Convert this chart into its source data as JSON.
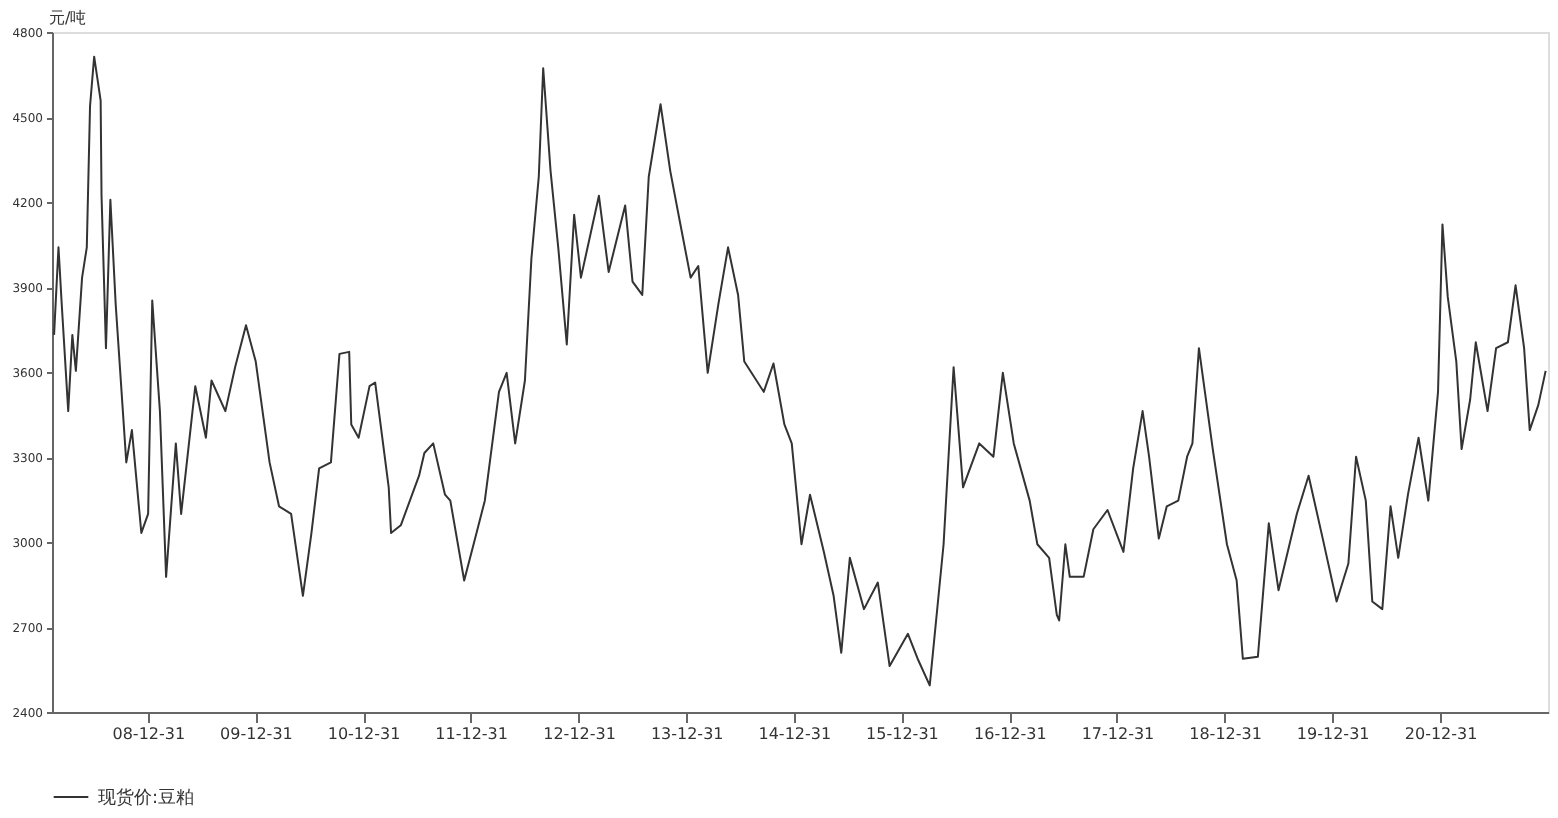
{
  "chart_data": {
    "type": "line",
    "ylabel": "元/吨",
    "legend": "bottom",
    "grid": false,
    "marker": "none",
    "line_style": "solid",
    "xlim": [
      "2008-02-10",
      "2022-01-01"
    ],
    "ylim": [
      2400,
      4800
    ],
    "yticks": [
      2400,
      2700,
      3000,
      3300,
      3600,
      3900,
      4200,
      4500,
      4800
    ],
    "xticks": [
      {
        "value": "2008-12-31",
        "label": "08-12-31"
      },
      {
        "value": "2009-12-31",
        "label": "09-12-31"
      },
      {
        "value": "2010-12-31",
        "label": "10-12-31"
      },
      {
        "value": "2011-12-31",
        "label": "11-12-31"
      },
      {
        "value": "2012-12-31",
        "label": "12-12-31"
      },
      {
        "value": "2013-12-31",
        "label": "13-12-31"
      },
      {
        "value": "2014-12-31",
        "label": "14-12-31"
      },
      {
        "value": "2015-12-31",
        "label": "15-12-31"
      },
      {
        "value": "2016-12-31",
        "label": "16-12-31"
      },
      {
        "value": "2017-12-31",
        "label": "17-12-31"
      },
      {
        "value": "2018-12-31",
        "label": "18-12-31"
      },
      {
        "value": "2019-12-31",
        "label": "19-12-31"
      },
      {
        "value": "2020-12-31",
        "label": "20-12-31"
      }
    ],
    "series": [
      {
        "name": "现货价:豆粕",
        "color": "#333333",
        "x": [
          "2008-02-17",
          "2008-03-03",
          "2008-03-14",
          "2008-04-05",
          "2008-04-19",
          "2008-05-01",
          "2008-05-22",
          "2008-06-07",
          "2008-06-18",
          "2008-07-02",
          "2008-07-24",
          "2008-07-27",
          "2008-08-11",
          "2008-08-26",
          "2008-09-13",
          "2008-10-19",
          "2008-11-07",
          "2008-12-09",
          "2009-01-01",
          "2009-01-15",
          "2009-02-10",
          "2009-03-03",
          "2009-04-05",
          "2009-04-23",
          "2009-06-10",
          "2009-07-16",
          "2009-08-04",
          "2009-09-20",
          "2009-10-23",
          "2009-11-29",
          "2010-01-01",
          "2010-02-17",
          "2010-03-21",
          "2010-05-01",
          "2010-06-10",
          "2010-07-09",
          "2010-08-04",
          "2010-09-13",
          "2010-10-12",
          "2010-11-14",
          "2010-11-21",
          "2010-12-16",
          "2011-01-22",
          "2011-02-10",
          "2011-03-28",
          "2011-04-05",
          "2011-05-08",
          "2011-07-09",
          "2011-07-27",
          "2011-08-26",
          "2011-10-05",
          "2011-10-23",
          "2011-12-09",
          "2012-01-15",
          "2012-02-17",
          "2012-04-05",
          "2012-05-01",
          "2012-05-30",
          "2012-07-02",
          "2012-07-24",
          "2012-08-18",
          "2012-09-02",
          "2012-09-27",
          "2012-10-23",
          "2012-11-21",
          "2012-12-16",
          "2013-01-08",
          "2013-03-10",
          "2013-04-12",
          "2013-06-07",
          "2013-07-02",
          "2013-08-04",
          "2013-08-26",
          "2013-10-05",
          "2013-11-07",
          "2013-12-09",
          "2014-01-15",
          "2014-02-10",
          "2014-03-14",
          "2014-04-19",
          "2014-05-22",
          "2014-06-25",
          "2014-07-16",
          "2014-09-20",
          "2014-10-23",
          "2014-11-29",
          "2014-12-24",
          "2015-01-26",
          "2015-02-24",
          "2015-04-12",
          "2015-05-15",
          "2015-06-10",
          "2015-07-09",
          "2015-08-26",
          "2015-10-12",
          "2015-11-21",
          "2016-01-22",
          "2016-02-24",
          "2016-04-05",
          "2016-05-22",
          "2016-06-25",
          "2016-07-27",
          "2016-09-20",
          "2016-11-07",
          "2016-12-09",
          "2017-01-15",
          "2017-03-10",
          "2017-04-05",
          "2017-05-15",
          "2017-06-10",
          "2017-06-18",
          "2017-07-09",
          "2017-07-24",
          "2017-09-09",
          "2017-10-12",
          "2017-11-29",
          "2018-01-22",
          "2018-02-24",
          "2018-03-28",
          "2018-04-19",
          "2018-05-22",
          "2018-06-18",
          "2018-07-27",
          "2018-08-26",
          "2018-09-13",
          "2018-10-05",
          "2018-11-21",
          "2019-01-08",
          "2019-02-10",
          "2019-03-03",
          "2019-04-23",
          "2019-05-30",
          "2019-07-02",
          "2019-09-02",
          "2019-10-12",
          "2019-11-29",
          "2020-01-15",
          "2020-02-24",
          "2020-03-21",
          "2020-04-23",
          "2020-05-15",
          "2020-06-18",
          "2020-07-16",
          "2020-08-11",
          "2020-09-13",
          "2020-10-19",
          "2020-11-21",
          "2020-12-24",
          "2021-01-08",
          "2021-01-26",
          "2021-02-24",
          "2021-03-14",
          "2021-04-12",
          "2021-05-01",
          "2021-06-10",
          "2021-07-09",
          "2021-08-18",
          "2021-09-13",
          "2021-10-12",
          "2021-10-31",
          "2021-11-29",
          "2021-12-24"
        ],
        "values": [
          3731,
          4040,
          3839,
          3462,
          3731,
          3604,
          3933,
          4040,
          4538,
          4713,
          4558,
          4222,
          3684,
          4208,
          3839,
          3281,
          3395,
          3032,
          3099,
          3852,
          3462,
          2877,
          3348,
          3099,
          3550,
          3368,
          3570,
          3462,
          3617,
          3765,
          3637,
          3281,
          3126,
          3099,
          2810,
          3032,
          3260,
          3281,
          3664,
          3671,
          3415,
          3368,
          3550,
          3563,
          3193,
          3032,
          3059,
          3234,
          3314,
          3348,
          3167,
          3146,
          2864,
          3012,
          3146,
          3530,
          3597,
          3348,
          3570,
          4000,
          4289,
          4672,
          4309,
          4040,
          3697,
          4155,
          3933,
          4222,
          3953,
          4188,
          3919,
          3872,
          4289,
          4545,
          4309,
          4134,
          3933,
          3974,
          3597,
          3839,
          4040,
          3872,
          3637,
          3530,
          3630,
          3415,
          3348,
          2992,
          3167,
          2965,
          2810,
          2609,
          2944,
          2763,
          2857,
          2562,
          2676,
          2588,
          2494,
          2992,
          3617,
          3193,
          3348,
          3301,
          3597,
          3348,
          3146,
          2992,
          2944,
          2743,
          2723,
          2992,
          2877,
          2877,
          3045,
          3113,
          2965,
          3260,
          3462,
          3301,
          3012,
          3126,
          3146,
          3301,
          3348,
          3684,
          3328,
          2992,
          2864,
          2588,
          2595,
          3066,
          2830,
          3099,
          3234,
          3012,
          2790,
          2924,
          3301,
          3146,
          2790,
          2763,
          3126,
          2944,
          3167,
          3368,
          3146,
          3530,
          4121,
          3865,
          3637,
          3328,
          3503,
          3705,
          3462,
          3684,
          3705,
          3906,
          3684,
          3395,
          3483,
          3604
        ]
      }
    ]
  }
}
